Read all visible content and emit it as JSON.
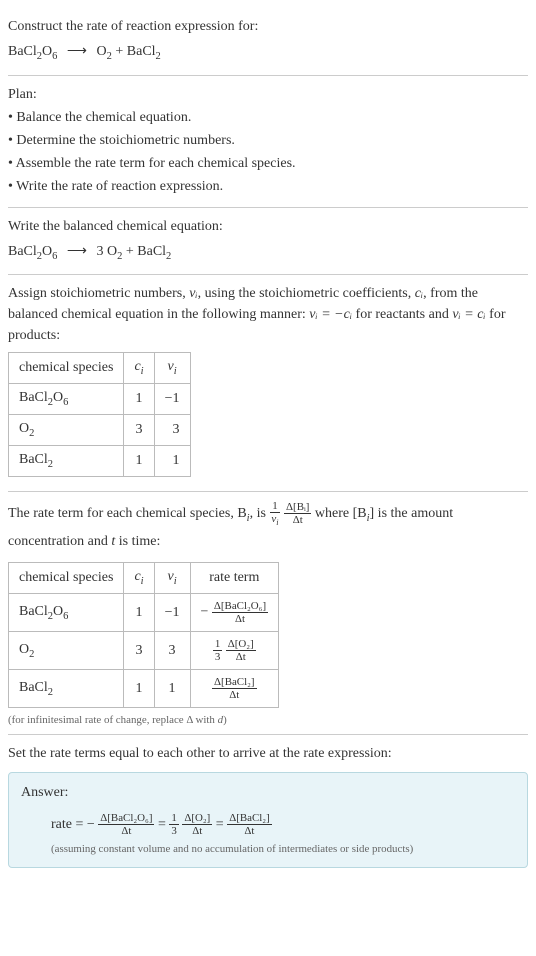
{
  "intro": {
    "prompt": "Construct the rate of reaction expression for:",
    "reactant": "BaCl₂O₆",
    "product1": "O₂",
    "product2": "BaCl₂"
  },
  "plan": {
    "heading": "Plan:",
    "items": [
      "Balance the chemical equation.",
      "Determine the stoichiometric numbers.",
      "Assemble the rate term for each chemical species.",
      "Write the rate of reaction expression."
    ]
  },
  "balanced": {
    "heading": "Write the balanced chemical equation:",
    "coef_o2": "3"
  },
  "stoich": {
    "text1": "Assign stoichiometric numbers, ",
    "text2": ", using the stoichiometric coefficients, ",
    "text3": ", from the balanced chemical equation in the following manner: ",
    "text4": " for reactants and ",
    "text5": " for products:",
    "headers": {
      "species": "chemical species",
      "ci": "cᵢ",
      "vi": "νᵢ"
    },
    "rows": [
      {
        "species": "BaCl₂O₆",
        "ci": "1",
        "vi": "−1"
      },
      {
        "species": "O₂",
        "ci": "3",
        "vi": "3"
      },
      {
        "species": "BaCl₂",
        "ci": "1",
        "vi": "1"
      }
    ]
  },
  "rateterm": {
    "text1": "The rate term for each chemical species, B",
    "text2": ", is ",
    "text3": " where [B",
    "text4": "] is the amount concentration and ",
    "text5": " is time:",
    "headers": {
      "species": "chemical species",
      "ci": "cᵢ",
      "vi": "νᵢ",
      "rate": "rate term"
    },
    "rows": [
      {
        "species": "BaCl₂O₆",
        "ci": "1",
        "vi": "−1",
        "sign": "−",
        "coef": "",
        "num": "Δ[BaCl₂O₆]",
        "den": "Δt"
      },
      {
        "species": "O₂",
        "ci": "3",
        "vi": "3",
        "sign": "",
        "coef_num": "1",
        "coef_den": "3",
        "num": "Δ[O₂]",
        "den": "Δt"
      },
      {
        "species": "BaCl₂",
        "ci": "1",
        "vi": "1",
        "sign": "",
        "coef": "",
        "num": "Δ[BaCl₂]",
        "den": "Δt"
      }
    ],
    "note": "(for infinitesimal rate of change, replace Δ with d)"
  },
  "final": {
    "heading": "Set the rate terms equal to each other to arrive at the rate expression:"
  },
  "answer": {
    "label": "Answer:",
    "prefix": "rate = −",
    "t1_num": "Δ[BaCl₂O₆]",
    "t1_den": "Δt",
    "eq1": " = ",
    "c2_num": "1",
    "c2_den": "3",
    "t2_num": "Δ[O₂]",
    "t2_den": "Δt",
    "eq2": " = ",
    "t3_num": "Δ[BaCl₂]",
    "t3_den": "Δt",
    "note": "(assuming constant volume and no accumulation of intermediates or side products)"
  },
  "symbols": {
    "nu_i": "νᵢ",
    "c_i": "cᵢ",
    "nu_eq_neg_c": "νᵢ = −cᵢ",
    "nu_eq_c": "νᵢ = cᵢ",
    "i": "i",
    "t": "t",
    "one": "1",
    "delta_bi": "Δ[Bᵢ]",
    "delta_t": "Δt"
  }
}
